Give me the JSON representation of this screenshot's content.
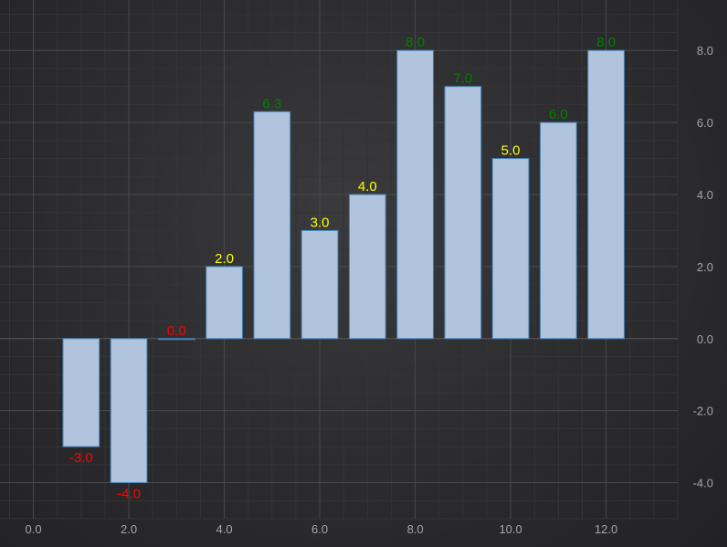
{
  "chart_data": {
    "type": "bar",
    "x": [
      1,
      2,
      3,
      4,
      5,
      6,
      7,
      8,
      9,
      10,
      11,
      12
    ],
    "values": [
      -3.0,
      -4.0,
      0.0,
      2.0,
      6.3,
      3.0,
      4.0,
      8.0,
      7.0,
      5.0,
      6.0,
      8.0
    ],
    "data_labels": [
      "-3.0",
      "-4.0",
      "0.0",
      "2.0",
      "6.3",
      "3.0",
      "4.0",
      "8.0",
      "7.0",
      "5.0",
      "6.0",
      "8.0"
    ],
    "label_colors": [
      "#ff0000",
      "#ff0000",
      "#ff0000",
      "#ffff00",
      "#008000",
      "#ffff00",
      "#ffff00",
      "#008000",
      "#008000",
      "#ffff00",
      "#008000",
      "#008000"
    ],
    "xlim": [
      -0.7,
      13.5
    ],
    "ylim": [
      -5.0,
      9.4
    ],
    "x_ticks": [
      0,
      2,
      4,
      6,
      8,
      10,
      12
    ],
    "x_tick_labels": [
      "0.0",
      "2.0",
      "4.0",
      "6.0",
      "8.0",
      "10.0",
      "12.0"
    ],
    "y_ticks": [
      -4,
      -2,
      0,
      2,
      4,
      6,
      8
    ],
    "y_tick_labels": [
      "-4.0",
      "-2.0",
      "0.0",
      "2.0",
      "4.0",
      "6.0",
      "8.0"
    ],
    "y_axis_side": "right",
    "grid": true,
    "title": "",
    "xlabel": "",
    "ylabel": "",
    "bar_fill": "#b0c4de",
    "bar_stroke": "#4682b4",
    "background": "#2e2e31"
  }
}
